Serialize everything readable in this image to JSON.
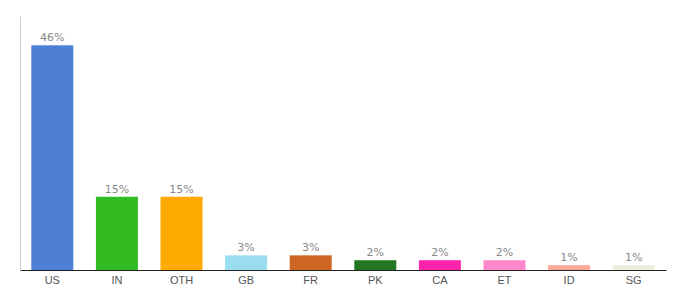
{
  "chart_data": {
    "type": "bar",
    "categories": [
      "US",
      "IN",
      "OTH",
      "GB",
      "FR",
      "PK",
      "CA",
      "ET",
      "ID",
      "SG"
    ],
    "values": [
      46,
      15,
      15,
      3,
      3,
      2,
      2,
      2,
      1,
      1
    ],
    "value_labels": [
      "46%",
      "15%",
      "15%",
      "3%",
      "3%",
      "2%",
      "2%",
      "2%",
      "1%",
      "1%"
    ],
    "colors": [
      "#4d7fd4",
      "#33bb22",
      "#ffaa00",
      "#99ddee",
      "#cc6622",
      "#227722",
      "#ff22aa",
      "#ff88cc",
      "#ffaa99",
      "#eeeedd"
    ],
    "ylim": [
      0,
      52
    ],
    "data_labels": true,
    "tick_labels": "x",
    "grid": false
  }
}
